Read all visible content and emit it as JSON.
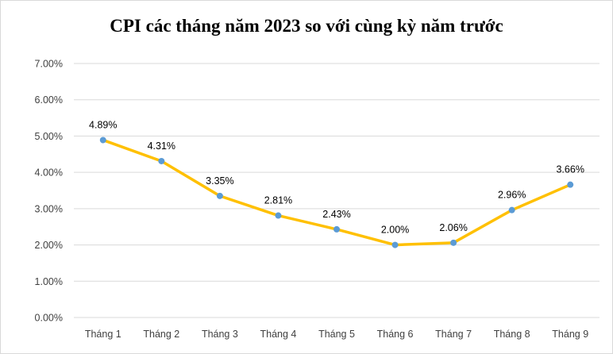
{
  "chart_data": {
    "type": "line",
    "title": "CPI các tháng năm 2023 so với cùng kỳ năm trước",
    "xlabel": "",
    "ylabel": "",
    "categories": [
      "Tháng 1",
      "Tháng 2",
      "Tháng 3",
      "Tháng 4",
      "Tháng 5",
      "Tháng 6",
      "Tháng 7",
      "Tháng 8",
      "Tháng 9"
    ],
    "values": [
      4.89,
      4.31,
      3.35,
      2.81,
      2.43,
      2.0,
      2.06,
      2.96,
      3.66
    ],
    "data_labels": [
      "4.89%",
      "4.31%",
      "3.35%",
      "2.81%",
      "2.43%",
      "2.00%",
      "2.06%",
      "2.96%",
      "3.66%"
    ],
    "y_tick_labels": [
      "0.00%",
      "1.00%",
      "2.00%",
      "3.00%",
      "4.00%",
      "5.00%",
      "6.00%",
      "7.00%"
    ],
    "y_ticks": [
      0,
      1,
      2,
      3,
      4,
      5,
      6,
      7
    ],
    "ylim": [
      0,
      7
    ],
    "grid": true,
    "legend": "none",
    "line_color": "#FFC000",
    "marker_color": "#5B9BD5",
    "grid_color": "#d9d9d9"
  }
}
